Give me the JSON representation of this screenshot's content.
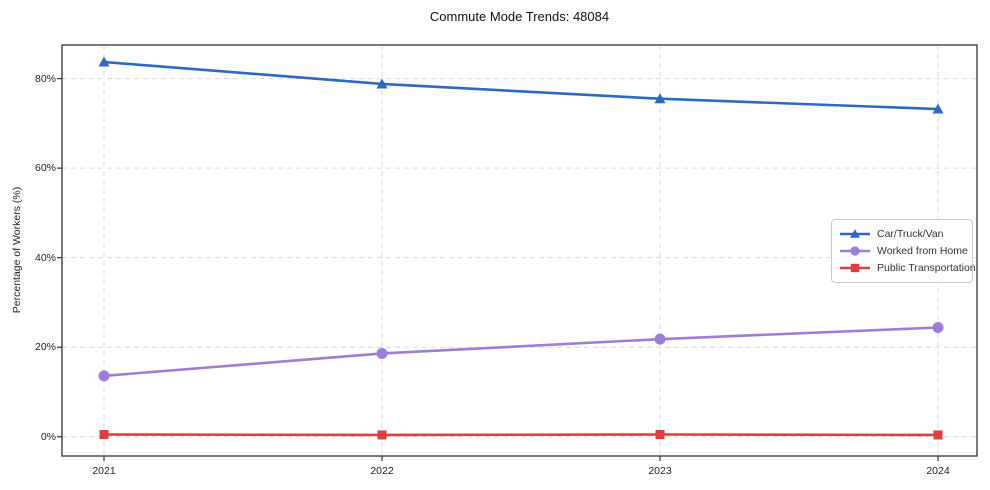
{
  "title": "Commute Mode Trends: 48084",
  "chart_data": {
    "type": "line",
    "title": "Commute Mode Trends: 48084",
    "xlabel": "",
    "ylabel": "Percentage of Workers (%)",
    "categories": [
      "2021",
      "2022",
      "2023",
      "2024"
    ],
    "series": [
      {
        "name": "Car/Truck/Van",
        "color": "#2c69c2",
        "marker": "triangle",
        "values": [
          83.7,
          78.8,
          75.5,
          73.2
        ]
      },
      {
        "name": "Worked from Home",
        "color": "#9d7dd8",
        "marker": "circle",
        "values": [
          13.6,
          18.6,
          21.8,
          24.4
        ]
      },
      {
        "name": "Public Transportation",
        "color": "#e03e3e",
        "marker": "square",
        "values": [
          0.5,
          0.4,
          0.5,
          0.4
        ]
      }
    ],
    "yticks": [
      0,
      20,
      40,
      60,
      80
    ],
    "ytick_labels": [
      "0%",
      "20%",
      "40%",
      "60%",
      "80%"
    ],
    "ylim": [
      -4.3,
      87.5
    ],
    "grid": true,
    "grid_style": "dashed",
    "legend_position": "center-right"
  }
}
